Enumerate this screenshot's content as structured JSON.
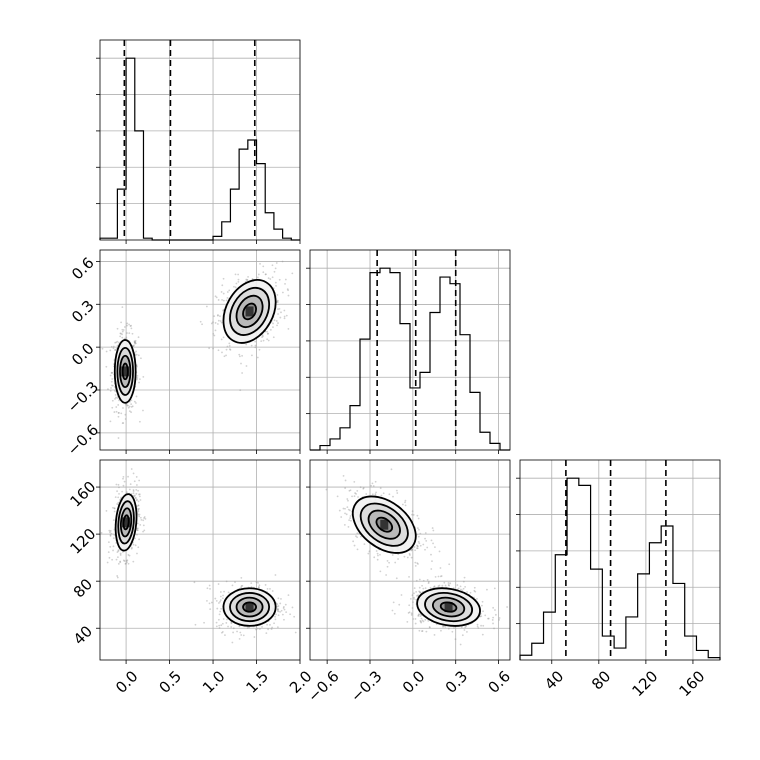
{
  "chart_data": {
    "type": "corner",
    "parameters": [
      {
        "name": "",
        "range": [
          -0.3,
          2.0
        ],
        "ticks": [
          "0.0",
          "0.5",
          "1.0",
          "1.5",
          "2.0"
        ],
        "tick_values": [
          0.0,
          0.5,
          1.0,
          1.5,
          2.0
        ],
        "quantiles": [
          -0.02,
          0.51,
          1.48
        ],
        "hist": {
          "bin_edges": [
            -0.3,
            -0.2,
            -0.1,
            0.0,
            0.1,
            0.2,
            0.3,
            0.4,
            0.5,
            0.6,
            0.7,
            0.8,
            0.9,
            1.0,
            1.1,
            1.2,
            1.3,
            1.4,
            1.5,
            1.6,
            1.7,
            1.8,
            1.9,
            2.0
          ],
          "counts": [
            0.01,
            0.01,
            0.28,
            1.0,
            0.6,
            0.01,
            0.0,
            0.0,
            0.0,
            0.0,
            0.0,
            0.0,
            0.0,
            0.02,
            0.1,
            0.28,
            0.5,
            0.55,
            0.42,
            0.15,
            0.06,
            0.01,
            0.0
          ]
        }
      },
      {
        "name": "",
        "range": [
          -0.72,
          0.68
        ],
        "ticks": [
          "−0.6",
          "−0.3",
          "0.0",
          "0.3",
          "0.6"
        ],
        "tick_values": [
          -0.6,
          -0.3,
          0.0,
          0.3,
          0.6
        ],
        "quantiles": [
          -0.25,
          0.02,
          0.3
        ],
        "hist": {
          "bin_edges": [
            -0.72,
            -0.65,
            -0.58,
            -0.51,
            -0.44,
            -0.37,
            -0.3,
            -0.23,
            -0.16,
            -0.09,
            -0.02,
            0.05,
            0.12,
            0.19,
            0.26,
            0.33,
            0.4,
            0.47,
            0.54,
            0.61,
            0.68
          ],
          "counts": [
            0.0,
            0.02,
            0.05,
            0.1,
            0.2,
            0.5,
            0.8,
            0.82,
            0.8,
            0.57,
            0.28,
            0.35,
            0.62,
            0.78,
            0.75,
            0.52,
            0.26,
            0.08,
            0.03,
            0.0
          ]
        }
      },
      {
        "name": "",
        "range": [
          13,
          183
        ],
        "ticks": [
          "40",
          "80",
          "120",
          "160"
        ],
        "tick_values": [
          40,
          80,
          120,
          160
        ],
        "quantiles": [
          52,
          90,
          137
        ],
        "hist": {
          "bin_edges": [
            13,
            23,
            33,
            43,
            53,
            63,
            73,
            83,
            93,
            103,
            113,
            123,
            133,
            143,
            153,
            163,
            173,
            183
          ],
          "counts": [
            0.02,
            0.07,
            0.2,
            0.44,
            0.76,
            0.73,
            0.38,
            0.1,
            0.05,
            0.18,
            0.36,
            0.49,
            0.56,
            0.32,
            0.1,
            0.04,
            0.01
          ]
        }
      }
    ],
    "pairs": [
      {
        "x_param": 0,
        "y_param": 1,
        "modes": [
          {
            "cx": -0.01,
            "cy": -0.17,
            "sx": 0.06,
            "sy": 0.11,
            "rho": 0.0
          },
          {
            "cx": 1.42,
            "cy": 0.25,
            "sx": 0.15,
            "sy": 0.11,
            "rho": 0.3
          }
        ]
      },
      {
        "x_param": 0,
        "y_param": 2,
        "modes": [
          {
            "cx": 0.0,
            "cy": 130,
            "sx": 0.06,
            "sy": 12,
            "rho": 0.2
          },
          {
            "cx": 1.42,
            "cy": 58,
            "sx": 0.15,
            "sy": 8,
            "rho": 0.0
          }
        ]
      },
      {
        "x_param": 1,
        "y_param": 2,
        "modes": [
          {
            "cx": -0.2,
            "cy": 128,
            "sx": 0.11,
            "sy": 12,
            "rho": -0.4
          },
          {
            "cx": 0.25,
            "cy": 58,
            "sx": 0.11,
            "sy": 8,
            "rho": -0.2
          }
        ]
      }
    ],
    "contour_levels_sigma": [
      0.5,
      1.0,
      1.5,
      2.0
    ],
    "grid": true,
    "histogram_y_tick_count": 5
  }
}
